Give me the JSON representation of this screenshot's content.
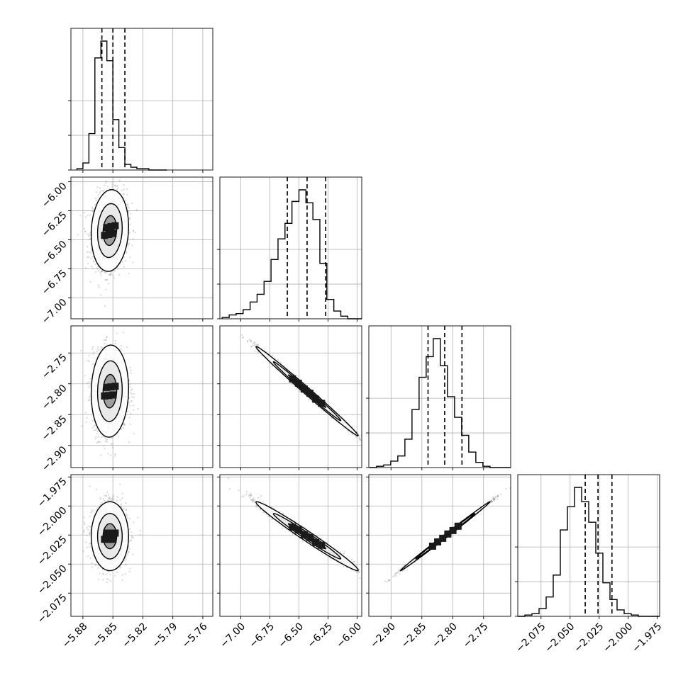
{
  "chart_data": {
    "type": "corner",
    "grid": true,
    "params": [
      {
        "ticks": [
          -5.88,
          -5.85,
          -5.82,
          -5.79,
          -5.76
        ],
        "tick_labels": [
          "−5.88",
          "−5.85",
          "−5.82",
          "−5.79",
          "−5.76"
        ],
        "range": [
          -5.892,
          -5.75
        ],
        "quantiles": [
          -5.861,
          -5.85,
          -5.838
        ],
        "hist": {
          "edges_start": -5.886,
          "bin_width": 0.006,
          "counts": [
            1,
            5,
            26,
            80,
            92,
            78,
            36,
            16,
            4,
            2,
            1,
            1,
            0,
            0,
            0
          ]
        },
        "mode": -5.853
      },
      {
        "ticks": [
          -7.0,
          -6.75,
          -6.5,
          -6.25,
          -6.0
        ],
        "tick_labels": [
          "−7.00",
          "−6.75",
          "−6.50",
          "−6.25",
          "−6.00"
        ],
        "range": [
          -7.18,
          -5.96
        ],
        "quantiles": [
          -6.6,
          -6.43,
          -6.27
        ],
        "hist": {
          "edges_start": -7.16,
          "bin_width": 0.06,
          "counts": [
            1,
            3,
            4,
            7,
            13,
            19,
            29,
            46,
            62,
            74,
            91,
            100,
            90,
            77,
            43,
            15,
            6,
            2,
            0,
            0
          ]
        },
        "mode": -6.4
      },
      {
        "ticks": [
          -2.9,
          -2.85,
          -2.8,
          -2.75
        ],
        "tick_labels": [
          "−2.90",
          "−2.85",
          "−2.80",
          "−2.75"
        ],
        "range": [
          -2.936,
          -2.706
        ],
        "quantiles": [
          -2.84,
          -2.813,
          -2.785
        ],
        "hist": {
          "edges_start": -2.935,
          "bin_width": 0.0115,
          "counts": [
            0,
            1,
            2,
            5,
            9,
            22,
            45,
            70,
            86,
            100,
            79,
            55,
            39,
            25,
            12,
            4,
            1,
            0,
            0,
            0
          ]
        },
        "mode": -2.812
      },
      {
        "ticks": [
          -2.075,
          -2.05,
          -2.025,
          -2.0,
          -1.975
        ],
        "tick_labels": [
          "−2.075",
          "−2.050",
          "−2.025",
          "−2.000",
          "−1.975"
        ],
        "range": [
          -2.095,
          -1.973
        ],
        "quantiles": [
          -2.037,
          -2.026,
          -2.014
        ],
        "hist": {
          "edges_start": -2.095,
          "bin_width": 0.0061,
          "counts": [
            0,
            1,
            2,
            6,
            15,
            32,
            67,
            85,
            100,
            89,
            73,
            49,
            26,
            13,
            5,
            2,
            1,
            0,
            0,
            0
          ]
        },
        "mode": -2.026
      }
    ],
    "pairs": [
      {
        "row": 1,
        "col": 0,
        "center": [
          -5.853,
          -6.42
        ],
        "sigma": [
          0.0085,
          0.16
        ],
        "rho": 0.1
      },
      {
        "row": 2,
        "col": 0,
        "center": [
          -5.853,
          -2.812
        ],
        "sigma": [
          0.0085,
          0.034
        ],
        "rho": 0.05
      },
      {
        "row": 2,
        "col": 1,
        "center": [
          -6.43,
          -2.812
        ],
        "sigma": [
          0.2,
          0.033
        ],
        "rho": -0.995
      },
      {
        "row": 3,
        "col": 0,
        "center": [
          -5.853,
          -2.026
        ],
        "sigma": [
          0.0085,
          0.0135
        ],
        "rho": 0.0
      },
      {
        "row": 3,
        "col": 1,
        "center": [
          -6.43,
          -2.026
        ],
        "sigma": [
          0.2,
          0.0135
        ],
        "rho": -0.985
      },
      {
        "row": 3,
        "col": 2,
        "center": [
          -2.812,
          -2.026
        ],
        "sigma": [
          0.033,
          0.0135
        ],
        "rho": 0.998
      }
    ],
    "colors": {
      "line": "#000000",
      "scatter": "#8c8c8c",
      "grid": "#b0b0b0",
      "fill": "#ffffff"
    }
  }
}
